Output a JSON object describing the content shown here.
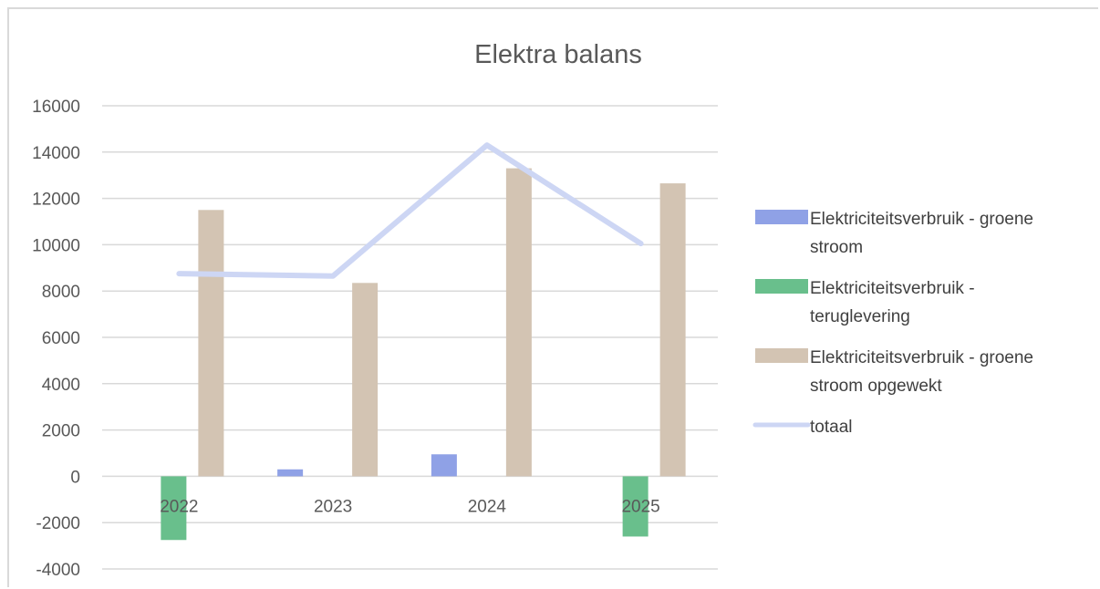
{
  "chart_data": {
    "type": "bar",
    "title": "Elektra balans",
    "categories": [
      "2022",
      "2023",
      "2024",
      "2025"
    ],
    "ylim": [
      -4000,
      16000
    ],
    "yticks": [
      16000,
      14000,
      12000,
      10000,
      8000,
      6000,
      4000,
      2000,
      0,
      -2000,
      -4000
    ],
    "grid": true,
    "legend_position": "right",
    "series": [
      {
        "name": "Elektriciteitsverbruik - groene stroom",
        "kind": "bar",
        "color": "#8fa1e6",
        "values": [
          0,
          300,
          950,
          0
        ]
      },
      {
        "name": "Elektriciteitsverbruik - teruglevering",
        "kind": "bar",
        "color": "#69bf8c",
        "values": [
          -2750,
          0,
          0,
          -2600
        ]
      },
      {
        "name": "Elektriciteitsverbruik - groene stroom opgewekt",
        "kind": "bar",
        "color": "#d3c4b3",
        "values": [
          11500,
          8350,
          13300,
          12650
        ]
      },
      {
        "name": "totaal",
        "kind": "line",
        "color": "#cdd6f4",
        "values": [
          8750,
          8650,
          14300,
          10050
        ]
      }
    ],
    "legend": [
      {
        "lines": [
          "Elektriciteitsverbruik - groene",
          "stroom"
        ]
      },
      {
        "lines": [
          "Elektriciteitsverbruik -",
          "teruglevering"
        ]
      },
      {
        "lines": [
          "Elektriciteitsverbruik - groene",
          "stroom opgewekt"
        ]
      },
      {
        "lines": [
          "totaal"
        ]
      }
    ]
  }
}
